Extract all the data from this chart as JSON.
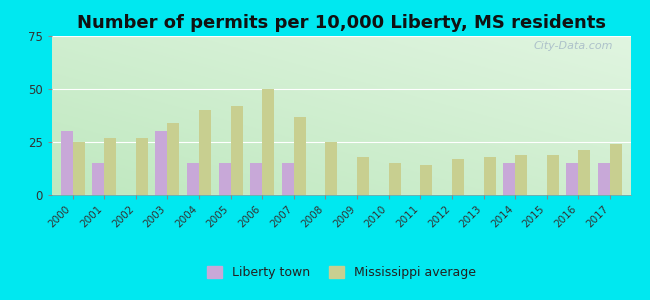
{
  "title": "Number of permits per 10,000 Liberty, MS residents",
  "years": [
    2000,
    2001,
    2002,
    2003,
    2004,
    2005,
    2006,
    2007,
    2008,
    2009,
    2010,
    2011,
    2012,
    2013,
    2014,
    2015,
    2016,
    2017
  ],
  "liberty_town": [
    30,
    15,
    0,
    30,
    15,
    15,
    15,
    15,
    0,
    0,
    0,
    0,
    0,
    0,
    15,
    0,
    15,
    15
  ],
  "ms_average": [
    25,
    27,
    27,
    34,
    40,
    42,
    50,
    37,
    25,
    18,
    15,
    14,
    17,
    18,
    19,
    19,
    21,
    24
  ],
  "liberty_color": "#c8a8d8",
  "ms_color": "#c8cf90",
  "outer_bg": "#00e8f0",
  "plot_bg_bottom": "#b8e8c0",
  "plot_bg_top": "#e8eee8",
  "ylim": [
    0,
    75
  ],
  "yticks": [
    0,
    25,
    50,
    75
  ],
  "bar_width": 0.38,
  "legend_liberty": "Liberty town",
  "legend_ms": "Mississippi average",
  "title_fontsize": 13,
  "watermark": "City-Data.com"
}
